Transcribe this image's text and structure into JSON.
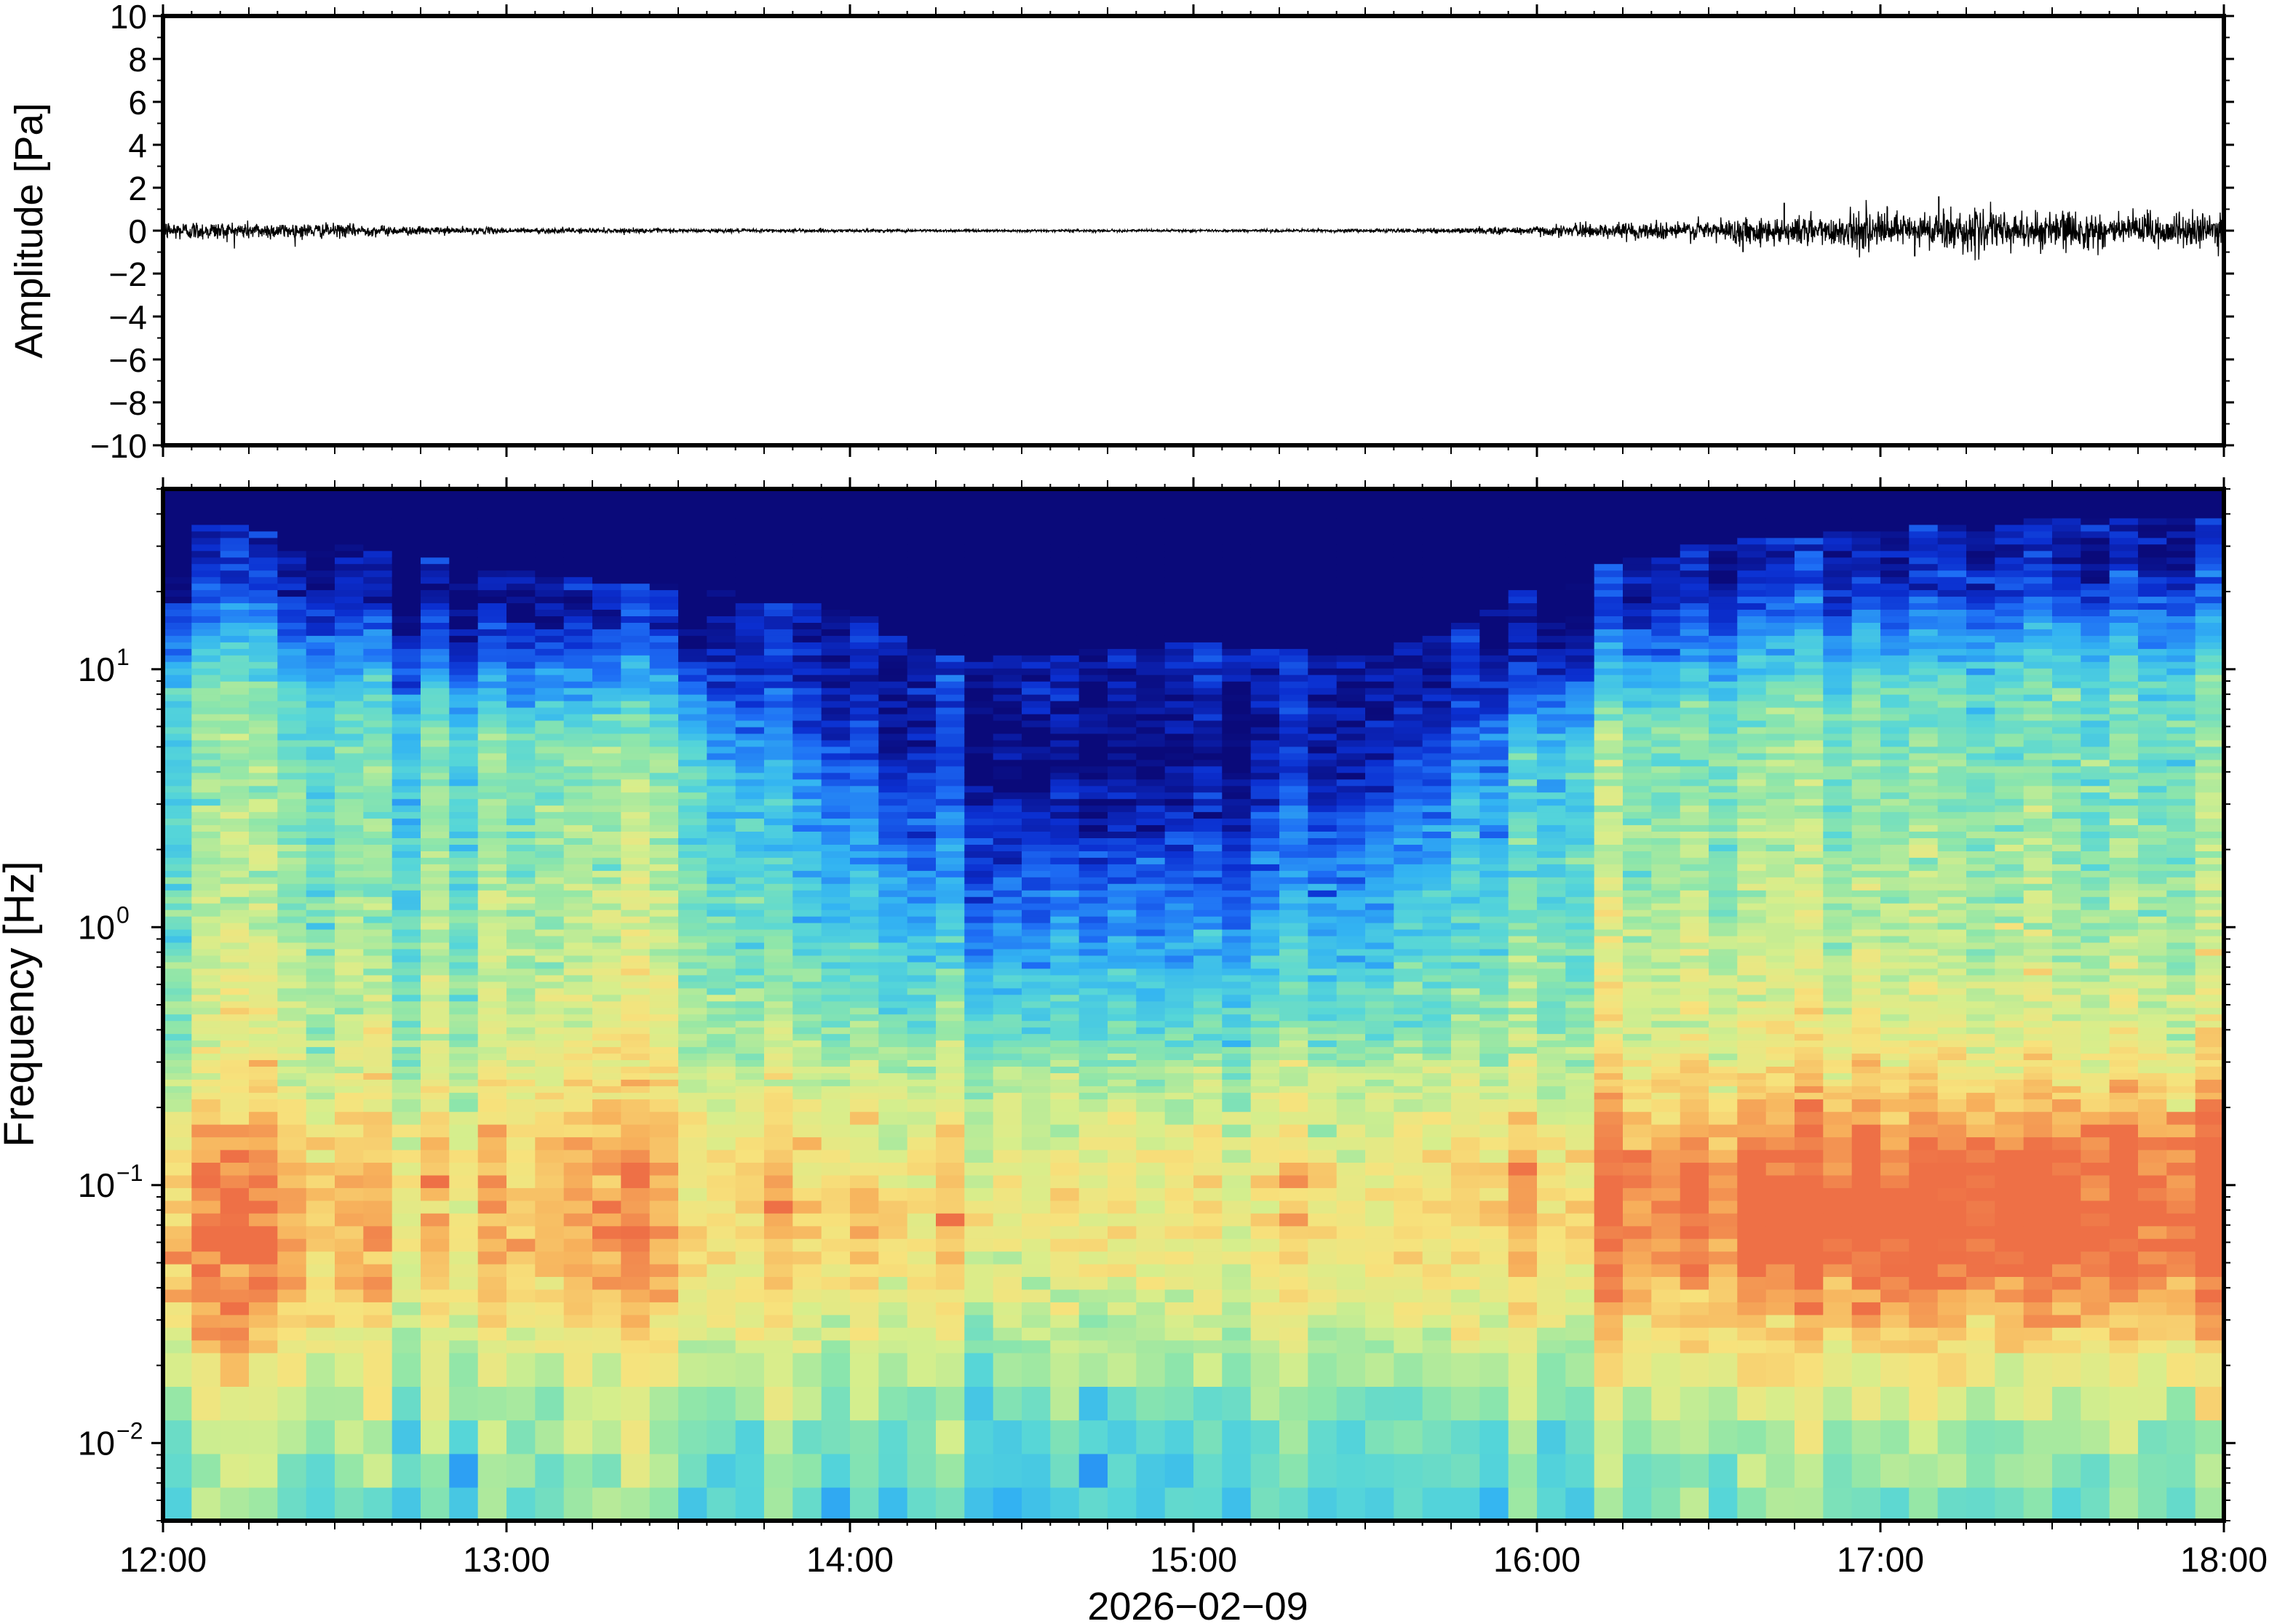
{
  "figure": {
    "date_label": "2026−02−09"
  },
  "chart_data": [
    {
      "type": "line",
      "panel": "waveform",
      "ylabel": "Amplitude [Pa]",
      "xlabel": "",
      "ylim": [
        -10,
        10
      ],
      "yticks": [
        10,
        8,
        6,
        4,
        2,
        0,
        -2,
        -4,
        -6,
        -8,
        -10
      ],
      "ytick_labels": [
        "10",
        "8",
        "6",
        "4",
        "2",
        "0",
        "−2",
        "−4",
        "−6",
        "−8",
        "−10"
      ],
      "xlim": [
        "12:00",
        "18:00"
      ],
      "envelope": {
        "description_hours": [
          12.0,
          12.25,
          12.5,
          12.75,
          13.0,
          13.5,
          14.0,
          14.5,
          15.0,
          15.5,
          15.75,
          16.0,
          16.25,
          16.5,
          16.75,
          17.0,
          17.25,
          17.5,
          17.75,
          18.0
        ],
        "amplitude_pa": [
          0.5,
          0.45,
          0.35,
          0.2,
          0.15,
          0.1,
          0.08,
          0.06,
          0.06,
          0.08,
          0.12,
          0.25,
          0.4,
          0.55,
          0.75,
          0.9,
          1.0,
          0.95,
          0.9,
          0.85
        ]
      },
      "peaks": [
        {
          "hour": 16.72,
          "value": 1.3
        },
        {
          "hour": 17.02,
          "value": 1.1
        },
        {
          "hour": 17.17,
          "value": 1.6
        },
        {
          "hour": 17.1,
          "value": -1.2
        },
        {
          "hour": 16.6,
          "value": -1.0
        }
      ]
    },
    {
      "type": "heatmap",
      "panel": "spectrogram",
      "ylabel": "Frequency [Hz]",
      "xlabel": "2026−02−09",
      "yscale": "log",
      "ylim": [
        0.005,
        50
      ],
      "yticks": [
        {
          "value": 10,
          "base": "10",
          "exp": "1"
        },
        {
          "value": 1,
          "base": "10",
          "exp": "0"
        },
        {
          "value": 0.1,
          "base": "10",
          "exp": "−1"
        },
        {
          "value": 0.01,
          "base": "10",
          "exp": "−2"
        }
      ],
      "xlim": [
        "12:00",
        "18:00"
      ],
      "xticks": [
        "12:00",
        "13:00",
        "14:00",
        "15:00",
        "16:00",
        "17:00",
        "18:00"
      ],
      "colormap": [
        "#0a0a7a",
        "#0b2fd0",
        "#1e6ef5",
        "#33b4f2",
        "#56d6d8",
        "#8fe6a9",
        "#d6ee8c",
        "#f7e27c",
        "#f7b25c",
        "#ee7046"
      ],
      "quiet_period_hours": [
        14.0,
        15.6
      ],
      "dark_top_cutoff_hz": {
        "hours": [
          12.0,
          12.5,
          13.0,
          13.5,
          14.0,
          14.25,
          14.5,
          15.0,
          15.5,
          15.75,
          16.0,
          16.5,
          17.0,
          17.5,
          18.0
        ],
        "freq_hz": [
          28,
          22,
          17,
          15,
          12,
          8,
          8,
          9,
          8,
          10,
          15,
          22,
          25,
          27,
          28
        ]
      }
    }
  ]
}
